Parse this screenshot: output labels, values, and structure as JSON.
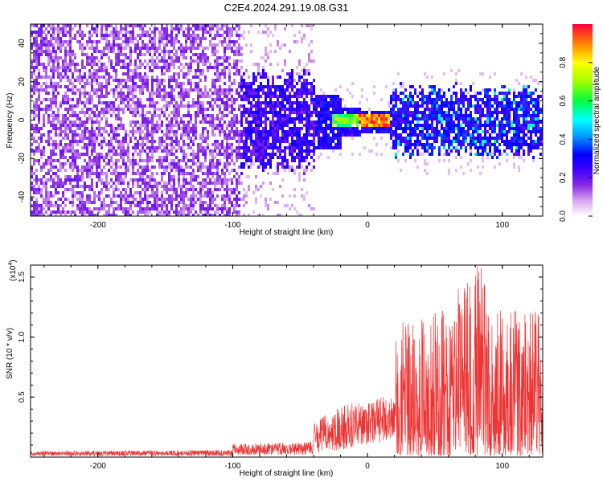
{
  "title": "C2E4.2024.291.19.08.G31",
  "colors": {
    "snr_line": "#ee3333",
    "colormap": [
      "#e060e0",
      "#8a2be2",
      "#5a00ff",
      "#0000ff",
      "#0070ff",
      "#00e0ff",
      "#00ff60",
      "#90ff00",
      "#ffff00",
      "#ffa000",
      "#ff2000"
    ]
  },
  "chart_data": [
    {
      "type": "heatmap",
      "xlabel": "Height of straight line (km)",
      "ylabel": "Frequency (Hz)",
      "xlim": [
        -250,
        130
      ],
      "ylim": [
        -50,
        50
      ],
      "xticks": [
        -200,
        -100,
        0,
        100
      ],
      "xtick_labels": [
        "-200",
        "-100",
        "0",
        "100"
      ],
      "yticks": [
        -40,
        -20,
        0,
        20,
        40
      ],
      "ytick_labels": [
        "-40",
        "-20",
        "0",
        "20",
        "40"
      ],
      "colorbar": {
        "label": "Normalized spectral amplitude",
        "range": [
          0,
          1
        ],
        "ticks": [
          0.0,
          0.2,
          0.4,
          0.6,
          0.8
        ],
        "tick_labels": [
          "0.0",
          "0.2",
          "0.4",
          "0.6",
          "0.8"
        ]
      },
      "regions": [
        {
          "x": [
            -250,
            -95
          ],
          "freq_range": [
            -50,
            50
          ],
          "amplitude": 0.05
        },
        {
          "x": [
            -95,
            -40
          ],
          "freq_range": [
            -25,
            25
          ],
          "amplitude": 0.15
        },
        {
          "x": [
            -25,
            15
          ],
          "freq_range": [
            -5,
            5
          ],
          "amplitude": 0.7
        },
        {
          "x": [
            -5,
            15
          ],
          "freq_range": [
            -2,
            2
          ],
          "amplitude": 0.95
        },
        {
          "x": [
            15,
            130
          ],
          "freq_range": [
            -20,
            20
          ],
          "amplitude": 0.25
        }
      ]
    },
    {
      "type": "line",
      "xlabel": "Height of straight line (km)",
      "ylabel": "SNR (10 * v/v)",
      "scale_label": "(x10",
      "scale_exp": "4",
      "scale_close": ")",
      "xlim": [
        -250,
        130
      ],
      "ylim": [
        0,
        16000
      ],
      "xticks": [
        -200,
        -100,
        0,
        100
      ],
      "xtick_labels": [
        "-200",
        "-100",
        "0",
        "100"
      ],
      "yticks": [
        5000,
        10000,
        15000
      ],
      "ytick_labels": [
        "0.5",
        "1.0",
        "1.5"
      ],
      "envelope": {
        "x": [
          -250,
          -100,
          -100,
          -40,
          -40,
          -20,
          -10,
          0,
          10,
          21,
          21,
          40,
          60,
          80,
          100,
          130
        ],
        "y_upper": [
          500,
          600,
          1100,
          1300,
          3000,
          4200,
          4800,
          4500,
          5000,
          5500,
          10800,
          11500,
          13000,
          16000,
          12000,
          13000
        ],
        "y_lower": [
          100,
          100,
          150,
          150,
          300,
          600,
          800,
          1000,
          1200,
          1500,
          100,
          100,
          100,
          100,
          100,
          100
        ]
      }
    }
  ]
}
